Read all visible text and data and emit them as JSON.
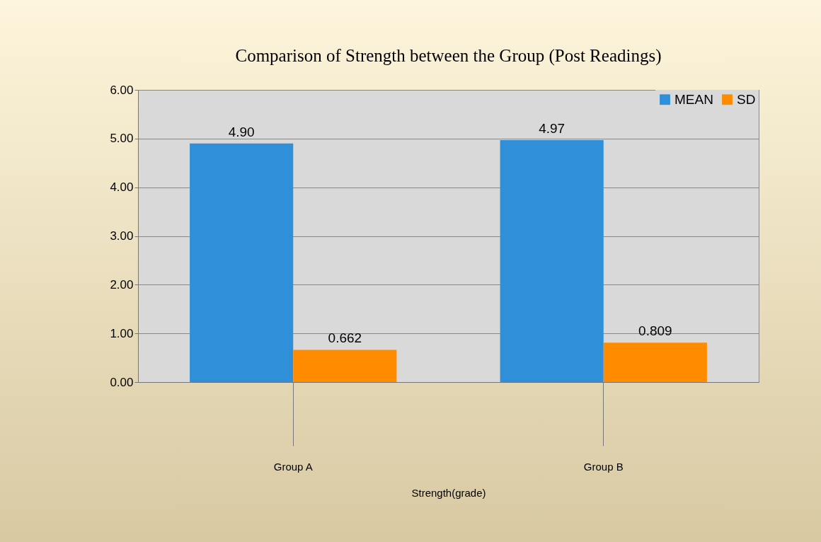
{
  "chart_data": {
    "type": "bar",
    "title": "Comparison of Strength between the Group (Post Readings)",
    "xlabel": "Strength(grade)",
    "categories": [
      "Group A",
      "Group B"
    ],
    "series": [
      {
        "name": "MEAN",
        "color": "#2f8fd8",
        "values": [
          4.9,
          4.97
        ],
        "value_labels": [
          "4.90",
          "4.97"
        ]
      },
      {
        "name": "SD",
        "color": "#ff8c00",
        "values": [
          0.662,
          0.809
        ],
        "value_labels": [
          "0.662",
          "0.809"
        ]
      }
    ],
    "ylim": [
      0,
      6
    ],
    "yticks": [
      {
        "value": 0,
        "label": "0.00"
      },
      {
        "value": 1,
        "label": "1.00"
      },
      {
        "value": 2,
        "label": "2.00"
      },
      {
        "value": 3,
        "label": "3.00"
      },
      {
        "value": 4,
        "label": "4.00"
      },
      {
        "value": 5,
        "label": "5.00"
      },
      {
        "value": 6,
        "label": "6.00"
      }
    ],
    "grid": "y",
    "legend": "top right"
  }
}
